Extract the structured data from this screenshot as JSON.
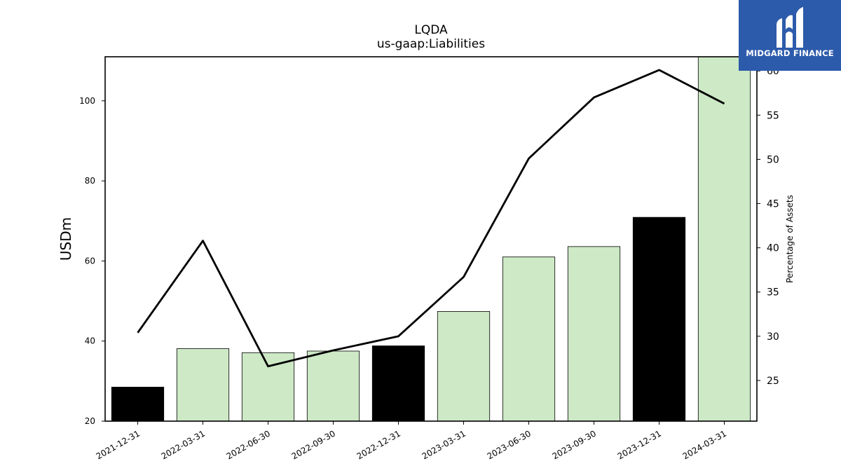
{
  "chart_data": {
    "type": "bar",
    "title": "LQDA",
    "subtitle": "us-gaap:Liabilities",
    "ylabel": "USDm",
    "y2label": "Percentage of Assets",
    "categories": [
      "2021-12-31",
      "2022-03-31",
      "2022-06-30",
      "2022-09-30",
      "2022-12-31",
      "2023-03-31",
      "2023-06-30",
      "2023-09-30",
      "2023-12-31",
      "2024-03-31"
    ],
    "series": [
      {
        "type": "bar",
        "axis": "left",
        "values": [
          28.5,
          38.1,
          37.1,
          37.5,
          38.8,
          47.4,
          61.0,
          63.6,
          70.9,
          111.0
        ],
        "colors": [
          "#000000",
          "#cde9c6",
          "#cde9c6",
          "#cde9c6",
          "#000000",
          "#cde9c6",
          "#cde9c6",
          "#cde9c6",
          "#000000",
          "#cde9c6"
        ]
      },
      {
        "type": "line",
        "axis": "right",
        "color": "#000000",
        "values": [
          30.4,
          40.8,
          26.6,
          28.4,
          30.0,
          36.7,
          50.1,
          57.0,
          60.1,
          56.3
        ]
      }
    ],
    "ylim": [
      20,
      111
    ],
    "y2lim": [
      20.4,
      61.6
    ],
    "yticks": [
      20,
      40,
      60,
      80,
      100
    ],
    "y2ticks": [
      25,
      30,
      35,
      40,
      45,
      50,
      55,
      60
    ],
    "grid": false,
    "legend": "none"
  },
  "logo": {
    "text": "MIDGARD FINANCE",
    "background": "#2d5bab"
  }
}
